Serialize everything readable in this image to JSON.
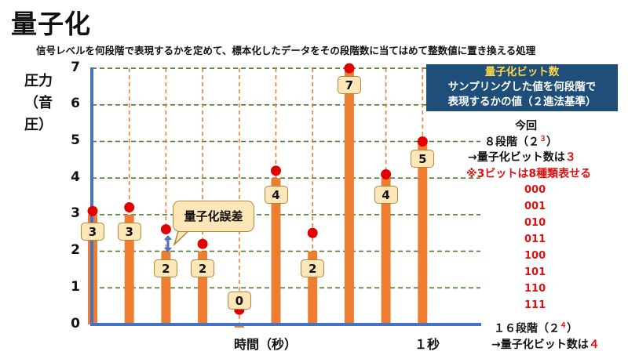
{
  "title": "量子化",
  "subtitle": "信号レベルを何段階で表現するかを定めて、標本化したデータをその段階数に当てはめて整数値に置き換える処理",
  "y_axis": {
    "label_line1": "圧力",
    "label_line2": "（音圧）",
    "ticks": [
      "0",
      "1",
      "2",
      "3",
      "4",
      "5",
      "6",
      "7"
    ]
  },
  "x_axis": {
    "label": "時間（秒）",
    "one_second": "１秒"
  },
  "chart_data": {
    "type": "bar",
    "xlabel": "時間（秒）",
    "ylabel": "圧力（音圧）",
    "ylim": [
      0,
      7
    ],
    "samples": [
      {
        "analog": 3.1,
        "quantized": 3
      },
      {
        "analog": 3.2,
        "quantized": 3
      },
      {
        "analog": 2.6,
        "quantized": 2
      },
      {
        "analog": 2.2,
        "quantized": 2
      },
      {
        "analog": 0.4,
        "quantized": 0
      },
      {
        "analog": 4.2,
        "quantized": 4
      },
      {
        "analog": 2.5,
        "quantized": 2
      },
      {
        "analog": 7.0,
        "quantized": 7
      },
      {
        "analog": 4.1,
        "quantized": 4
      },
      {
        "analog": 5.0,
        "quantized": 5
      }
    ],
    "colors": {
      "bar": "#ed7d31",
      "marker": "#e00000",
      "axis": "#4472c4",
      "grid": "#4a7a2c"
    }
  },
  "callout": {
    "text": "量子化誤差"
  },
  "infobox": {
    "title": "量子化ビット数",
    "line1": "サンプリングした値を何段階で",
    "line2": "表現するかの値（２進法基準）"
  },
  "side": {
    "now": "今回",
    "eight_levels": "８段階（２",
    "eight_exp": "３",
    "close_paren": "）",
    "arrow_bits": "→量子化ビット数は",
    "bits3": "３",
    "note": "※3ビットは8種類表せる",
    "codes": [
      "000",
      "001",
      "010",
      "011",
      "100",
      "101",
      "110",
      "111"
    ],
    "sixteen_levels": "１６段階（２",
    "sixteen_exp": "４",
    "bits4": "４"
  }
}
